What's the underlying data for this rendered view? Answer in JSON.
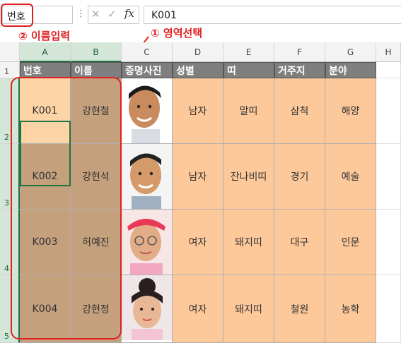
{
  "formula_bar": {
    "name_box_value": "번호",
    "dots": "⋮",
    "cancel_icon": "close-icon",
    "enter_icon": "check-icon",
    "fx_label": "fx",
    "formula_value": "K001"
  },
  "annotations": {
    "step2": "② 이름입력",
    "step1": "① 영역선택"
  },
  "columns": [
    "A",
    "B",
    "C",
    "D",
    "E",
    "F",
    "G",
    "H"
  ],
  "rows": [
    "1",
    "2",
    "3",
    "4",
    "5"
  ],
  "header_row": [
    "번호",
    "이름",
    "증명사진",
    "성별",
    "띠",
    "거주지",
    "분야"
  ],
  "data_rows": [
    {
      "id": "K001",
      "name": "강현철",
      "gender": "남자",
      "zodiac": "말띠",
      "residence": "삼척",
      "field": "해양"
    },
    {
      "id": "K002",
      "name": "강현석",
      "gender": "남자",
      "zodiac": "잔나비띠",
      "residence": "경기",
      "field": "예술"
    },
    {
      "id": "K003",
      "name": "허예진",
      "gender": "여자",
      "zodiac": "돼지띠",
      "residence": "대구",
      "field": "인문"
    },
    {
      "id": "K004",
      "name": "강현정",
      "gender": "여자",
      "zodiac": "돼지띠",
      "residence": "철원",
      "field": "농학"
    }
  ],
  "colors": {
    "header_fill": "#7f7f7f",
    "peach": "#fdc89a",
    "brown": "#c5a07d",
    "annotation_red": "#e02020",
    "excel_green": "#217346"
  }
}
